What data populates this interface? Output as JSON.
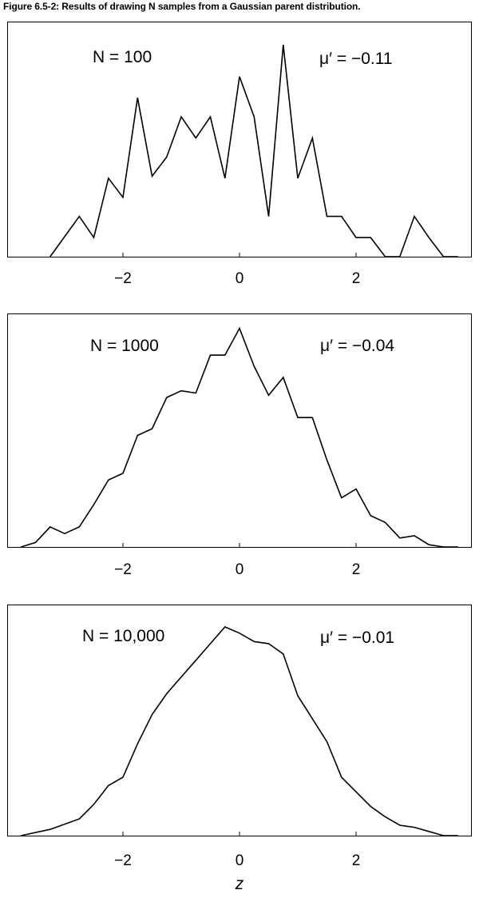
{
  "figure_title": "Figure 6.5-2: Results of drawing N samples from a Gaussian parent distribution.",
  "xlabel": "z",
  "chart_data": [
    {
      "type": "line",
      "title": "",
      "annotation_n": "N = 100",
      "annotation_mu": "μ′ = −0.11",
      "xlim": [
        -3.9,
        3.9
      ],
      "xticks": [
        "−2",
        "0",
        "2"
      ],
      "xtick_values": [
        -2,
        0,
        2
      ],
      "grid": false,
      "x": [
        -3.25,
        -2.75,
        -2.5,
        -2.25,
        -2.0,
        -1.75,
        -1.5,
        -1.25,
        -1.0,
        -0.75,
        -0.5,
        -0.25,
        0.0,
        0.25,
        0.5,
        0.75,
        1.0,
        1.25,
        1.5,
        1.75,
        2.0,
        2.25,
        2.5,
        2.75,
        3.0,
        3.25,
        3.5,
        3.75
      ],
      "y": [
        0.0,
        0.19,
        0.09,
        0.37,
        0.28,
        0.75,
        0.38,
        0.47,
        0.66,
        0.56,
        0.66,
        0.37,
        0.85,
        0.66,
        0.19,
        1.0,
        0.37,
        0.56,
        0.19,
        0.19,
        0.09,
        0.09,
        0.0,
        0.0,
        0.19,
        0.09,
        0.0,
        0.0
      ]
    },
    {
      "type": "line",
      "title": "",
      "annotation_n": "N = 1000",
      "annotation_mu": "μ′ = −0.04",
      "xlim": [
        -3.9,
        3.9
      ],
      "xticks": [
        "−2",
        "0",
        "2"
      ],
      "xtick_values": [
        -2,
        0,
        2
      ],
      "grid": false,
      "x": [
        -3.75,
        -3.5,
        -3.25,
        -3.0,
        -2.75,
        -2.5,
        -2.25,
        -2.0,
        -1.75,
        -1.5,
        -1.25,
        -1.0,
        -0.75,
        -0.5,
        -0.25,
        0.0,
        0.25,
        0.5,
        0.75,
        1.0,
        1.25,
        1.5,
        1.75,
        2.0,
        2.25,
        2.5,
        2.75,
        3.0,
        3.25,
        3.5,
        3.75
      ],
      "y": [
        0.0,
        0.02,
        0.09,
        0.06,
        0.09,
        0.19,
        0.3,
        0.33,
        0.5,
        0.53,
        0.67,
        0.7,
        0.69,
        0.86,
        0.86,
        0.98,
        0.81,
        0.68,
        0.76,
        0.58,
        0.58,
        0.39,
        0.22,
        0.26,
        0.14,
        0.11,
        0.04,
        0.05,
        0.01,
        0.0,
        0.0
      ]
    },
    {
      "type": "line",
      "title": "",
      "annotation_n": "N = 10,000",
      "annotation_mu": "μ′ = −0.01",
      "xlim": [
        -3.9,
        3.9
      ],
      "xticks": [
        "−2",
        "0",
        "2"
      ],
      "xtick_values": [
        -2,
        0,
        2
      ],
      "grid": false,
      "x": [
        -3.75,
        -3.25,
        -2.75,
        -2.5,
        -2.25,
        -2.0,
        -1.75,
        -1.5,
        -1.25,
        -1.0,
        -0.75,
        -0.5,
        -0.25,
        0.0,
        0.25,
        0.5,
        0.75,
        1.0,
        1.25,
        1.5,
        1.75,
        2.0,
        2.25,
        2.5,
        2.75,
        3.0,
        3.25,
        3.5,
        3.75
      ],
      "y": [
        0.0,
        0.03,
        0.08,
        0.15,
        0.24,
        0.28,
        0.44,
        0.58,
        0.68,
        0.76,
        0.84,
        0.92,
        1.0,
        0.97,
        0.93,
        0.92,
        0.87,
        0.67,
        0.56,
        0.45,
        0.28,
        0.21,
        0.14,
        0.09,
        0.05,
        0.04,
        0.02,
        0.0,
        0.0
      ]
    }
  ]
}
